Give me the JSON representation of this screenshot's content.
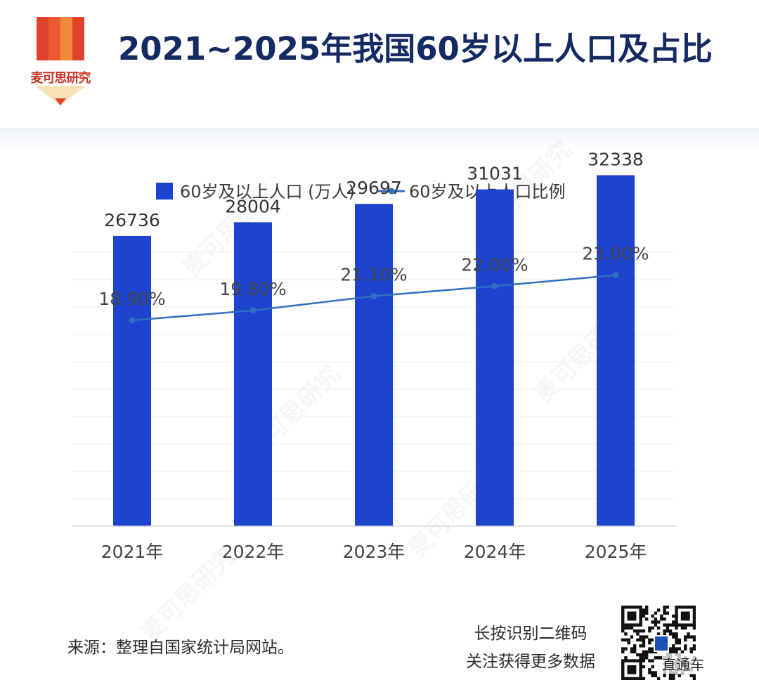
{
  "brand": {
    "name": "麦可思研究",
    "colors": {
      "red": "#e0432b",
      "orange": "#f08a3a",
      "cream": "#f6e2b6",
      "dark_red": "#c8352a"
    }
  },
  "title": "2021~2025年我国60岁以上人口及占比",
  "chart_data": {
    "type": "bar",
    "categories": [
      "2021年",
      "2022年",
      "2023年",
      "2024年",
      "2025年"
    ],
    "series": [
      {
        "name": "60岁及以上人口 (万人)",
        "type": "bar",
        "values": [
          26736,
          28004,
          29697,
          31031,
          32338
        ],
        "labels": [
          "26736",
          "28004",
          "29697",
          "31031",
          "32338"
        ],
        "color": "#1e44cf"
      },
      {
        "name": "60岁及以上人口比例",
        "type": "line",
        "values": [
          18.9,
          19.8,
          21.1,
          22.0,
          23.0
        ],
        "labels": [
          "18.90%",
          "19.80%",
          "21.10%",
          "22.00%",
          "23.00%"
        ],
        "color": "#2f6fc0"
      }
    ],
    "ylim_bar": [
      0,
      50000
    ],
    "ylim_line": [
      0,
      30
    ],
    "grid": true,
    "legend_position": "top"
  },
  "footer": {
    "source": "来源：整理自国家统计局网站。",
    "qr_caption": [
      "长按识别二维码",
      "关注获得更多数据"
    ],
    "corner_badge": "直通车"
  },
  "watermark_text": "麦可思研究"
}
